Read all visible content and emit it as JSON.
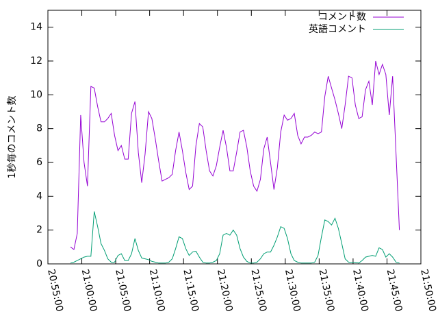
{
  "chart_data": {
    "type": "line",
    "ylabel": "1秒毎のコメント数",
    "x": [
      "20:58:20",
      "20:58:50",
      "20:59:20",
      "20:59:50",
      "21:00:20",
      "21:00:50",
      "21:01:20",
      "21:01:50",
      "21:02:20",
      "21:02:50",
      "21:03:20",
      "21:03:50",
      "21:04:20",
      "21:04:50",
      "21:05:20",
      "21:05:50",
      "21:06:20",
      "21:06:50",
      "21:07:20",
      "21:07:50",
      "21:08:20",
      "21:08:50",
      "21:09:20",
      "21:09:50",
      "21:10:20",
      "21:10:50",
      "21:11:20",
      "21:11:50",
      "21:12:20",
      "21:12:50",
      "21:13:20",
      "21:13:50",
      "21:14:20",
      "21:14:50",
      "21:15:20",
      "21:15:50",
      "21:16:20",
      "21:16:50",
      "21:17:20",
      "21:17:50",
      "21:18:20",
      "21:18:50",
      "21:19:20",
      "21:19:50",
      "21:20:20",
      "21:20:50",
      "21:21:20",
      "21:21:50",
      "21:22:20",
      "21:22:50",
      "21:23:20",
      "21:23:50",
      "21:24:20",
      "21:24:50",
      "21:25:20",
      "21:25:50",
      "21:26:20",
      "21:26:50",
      "21:27:20",
      "21:27:50",
      "21:28:20",
      "21:28:50",
      "21:29:20",
      "21:29:50",
      "21:30:20",
      "21:30:50",
      "21:31:20",
      "21:31:50",
      "21:32:20",
      "21:32:50",
      "21:33:20",
      "21:33:50",
      "21:34:20",
      "21:34:50",
      "21:35:20",
      "21:35:50",
      "21:36:20",
      "21:36:50",
      "21:37:20",
      "21:37:50",
      "21:38:20",
      "21:38:50",
      "21:39:20",
      "21:39:50",
      "21:40:20",
      "21:40:50",
      "21:41:20",
      "21:41:50",
      "21:42:20",
      "21:42:50",
      "21:43:20",
      "21:43:50",
      "21:44:20",
      "21:44:50",
      "21:45:20",
      "21:45:50",
      "21:46:20",
      "21:46:50"
    ],
    "series": [
      {
        "name": "コメント数",
        "color": "#9400d3",
        "values": [
          1.0,
          0.85,
          1.8,
          8.8,
          6.0,
          4.6,
          10.5,
          10.4,
          9.3,
          8.4,
          8.4,
          8.6,
          8.9,
          7.6,
          6.7,
          7.0,
          6.2,
          6.2,
          8.9,
          9.6,
          6.6,
          4.8,
          6.5,
          9.0,
          8.6,
          7.4,
          6.1,
          4.9,
          5.0,
          5.1,
          5.3,
          6.7,
          7.8,
          6.7,
          5.4,
          4.4,
          4.6,
          7.0,
          8.3,
          8.1,
          6.7,
          5.5,
          5.2,
          5.8,
          6.9,
          7.9,
          6.9,
          5.5,
          5.5,
          6.6,
          7.8,
          7.9,
          6.9,
          5.5,
          4.6,
          4.3,
          5.0,
          6.8,
          7.5,
          6.0,
          4.4,
          5.7,
          7.8,
          8.8,
          8.5,
          8.6,
          8.9,
          7.6,
          7.1,
          7.5,
          7.5,
          7.6,
          7.8,
          7.7,
          7.8,
          9.9,
          11.1,
          10.4,
          9.7,
          8.9,
          8.0,
          9.4,
          11.1,
          11.0,
          9.4,
          8.6,
          8.7,
          10.3,
          10.8,
          9.4,
          12.0,
          11.2,
          11.8,
          11.2,
          8.8,
          11.1,
          6.5,
          2.0
        ]
      },
      {
        "name": "英語コメント",
        "color": "#009e73",
        "values": [
          0.05,
          0.1,
          0.2,
          0.3,
          0.4,
          0.45,
          0.45,
          3.1,
          2.2,
          1.2,
          0.8,
          0.3,
          0.1,
          0.1,
          0.5,
          0.6,
          0.2,
          0.2,
          0.6,
          1.5,
          0.8,
          0.35,
          0.3,
          0.25,
          0.15,
          0.1,
          0.05,
          0.05,
          0.05,
          0.1,
          0.3,
          0.9,
          1.6,
          1.5,
          0.9,
          0.5,
          0.7,
          0.75,
          0.4,
          0.1,
          0.05,
          0.05,
          0.1,
          0.2,
          0.6,
          1.7,
          1.8,
          1.7,
          2.0,
          1.7,
          0.9,
          0.4,
          0.15,
          0.05,
          0.05,
          0.1,
          0.3,
          0.6,
          0.7,
          0.7,
          1.1,
          1.6,
          2.2,
          2.1,
          1.5,
          0.6,
          0.2,
          0.1,
          0.05,
          0.05,
          0.05,
          0.05,
          0.1,
          0.5,
          1.6,
          2.6,
          2.5,
          2.3,
          2.7,
          2.1,
          1.2,
          0.3,
          0.1,
          0.1,
          0.1,
          0.05,
          0.2,
          0.4,
          0.45,
          0.5,
          0.45,
          0.95,
          0.85,
          0.4,
          0.6,
          0.4,
          0.1,
          0.05
        ]
      }
    ],
    "xlim": [
      "20:55:00",
      "21:50:00"
    ],
    "xticks": [
      "20:55:00",
      "21:00:00",
      "21:05:00",
      "21:10:00",
      "21:15:00",
      "21:20:00",
      "21:25:00",
      "21:30:00",
      "21:35:00",
      "21:40:00",
      "21:45:00",
      "21:50:00"
    ],
    "ylim": [
      0,
      15
    ],
    "yticks": [
      0,
      2,
      4,
      6,
      8,
      10,
      12,
      14
    ],
    "legend": "top-right"
  }
}
